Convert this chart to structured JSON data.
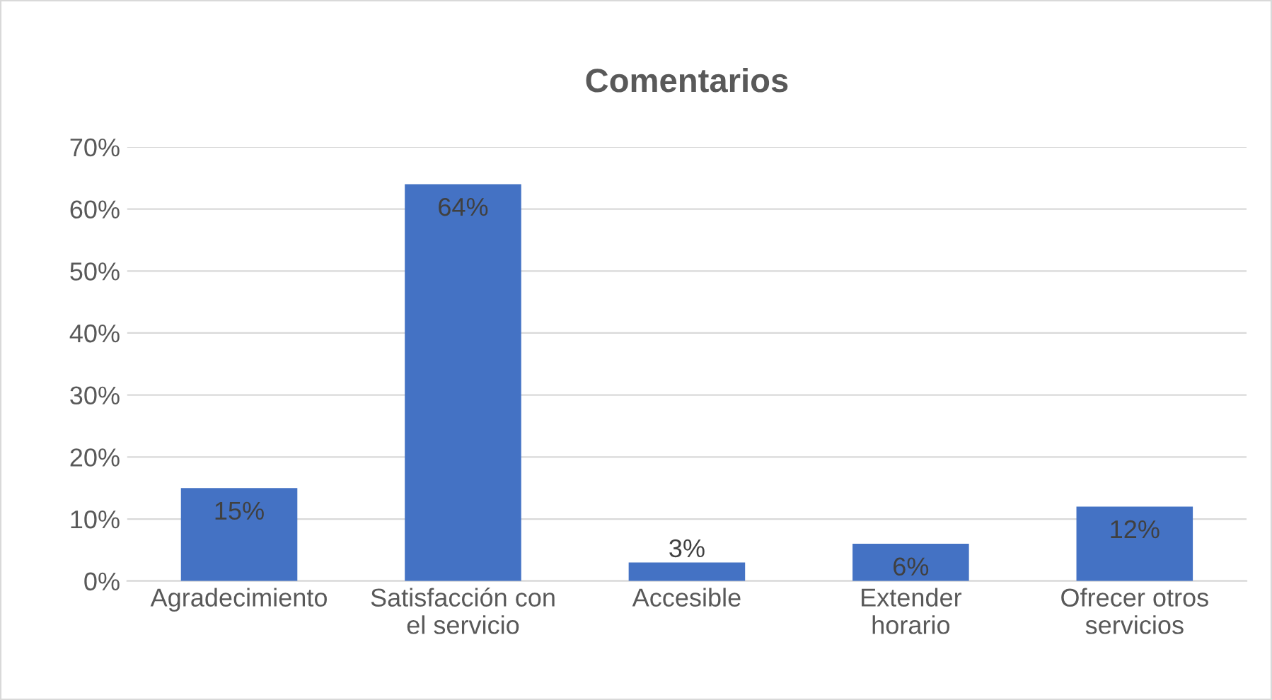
{
  "chart_data": {
    "type": "bar",
    "title": "Comentarios",
    "categories": [
      "Agradecimiento",
      "Satisfacción con\nel servicio",
      "Accesible",
      "Extender\nhorario",
      "Ofrecer otros\nservicios"
    ],
    "values": [
      15,
      64,
      3,
      6,
      12
    ],
    "value_labels": [
      "15%",
      "64%",
      "3%",
      "6%",
      "12%"
    ],
    "color": "#4472c4",
    "ylim": [
      0,
      70
    ],
    "yticks": [
      {
        "value": 0,
        "label": "0%"
      },
      {
        "value": 10,
        "label": "10%"
      },
      {
        "value": 20,
        "label": "20%"
      },
      {
        "value": 30,
        "label": "30%"
      },
      {
        "value": 40,
        "label": "40%"
      },
      {
        "value": 50,
        "label": "50%"
      },
      {
        "value": 60,
        "label": "60%"
      },
      {
        "value": 70,
        "label": "70%"
      }
    ],
    "grid": "y"
  }
}
